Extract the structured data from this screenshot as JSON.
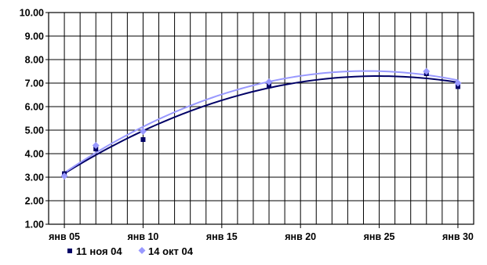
{
  "chart_data": {
    "type": "scatter",
    "title": "",
    "xlabel": "",
    "ylabel": "",
    "ylim": [
      1,
      10
    ],
    "xlim": [
      "2005-01-04",
      "2005-01-31"
    ],
    "x_ticks": [
      {
        "date": "2005-01-05",
        "label": "янв 05"
      },
      {
        "date": "2005-01-10",
        "label": "янв 10"
      },
      {
        "date": "2005-01-15",
        "label": "янв 15"
      },
      {
        "date": "2005-01-20",
        "label": "янв 20"
      },
      {
        "date": "2005-01-25",
        "label": "янв 25"
      },
      {
        "date": "2005-01-30",
        "label": "янв 30"
      }
    ],
    "y_ticks": [
      {
        "value": 10,
        "label": "10.00"
      },
      {
        "value": 9,
        "label": "9.00"
      },
      {
        "value": 8,
        "label": "8.00"
      },
      {
        "value": 7,
        "label": "7.00"
      },
      {
        "value": 6,
        "label": "6.00"
      },
      {
        "value": 5,
        "label": "5.00"
      },
      {
        "value": 4,
        "label": "4.00"
      },
      {
        "value": 3,
        "label": "3.00"
      },
      {
        "value": 2,
        "label": "2.00"
      },
      {
        "value": 1,
        "label": "1.00"
      }
    ],
    "grid": true,
    "legend_position": "bottom-left",
    "series": [
      {
        "name": "11 ноя 04",
        "color": "#000066",
        "marker": "square",
        "trendline": "polynomial",
        "points": [
          {
            "x": "2005-01-05",
            "y": 3.15
          },
          {
            "x": "2005-01-07",
            "y": 4.2
          },
          {
            "x": "2005-01-10",
            "y": 4.6
          },
          {
            "x": "2005-01-18",
            "y": 6.9
          },
          {
            "x": "2005-01-28",
            "y": 7.4
          },
          {
            "x": "2005-01-30",
            "y": 6.85
          }
        ]
      },
      {
        "name": "14 окт 04",
        "color": "#9999ff",
        "marker": "diamond",
        "trendline": "polynomial",
        "points": [
          {
            "x": "2005-01-05",
            "y": 3.05
          },
          {
            "x": "2005-01-07",
            "y": 4.35
          },
          {
            "x": "2005-01-10",
            "y": 4.95
          },
          {
            "x": "2005-01-18",
            "y": 7.05
          },
          {
            "x": "2005-01-28",
            "y": 7.5
          },
          {
            "x": "2005-01-30",
            "y": 7.0
          }
        ]
      }
    ]
  }
}
